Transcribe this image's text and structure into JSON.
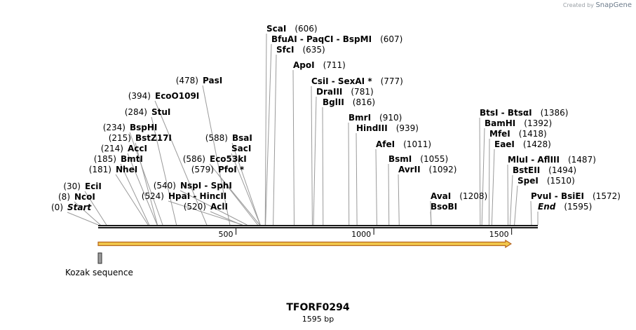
{
  "credit": {
    "prefix": "Created by",
    "brand": "SnapGene"
  },
  "sequence": {
    "name": "TFORF0294",
    "length_label": "1595 bp",
    "length": 1595
  },
  "ruler": {
    "ticks": [
      500,
      1000,
      1500
    ]
  },
  "feature": {
    "name": "Kozak sequence"
  },
  "colors": {
    "backbone": "#1a1a1a",
    "orf_fill": "#f2c84b",
    "orf_edge": "#b5651d",
    "feature": "#888888"
  },
  "sites": [
    {
      "name": "Start",
      "pos": "(0)",
      "site": 0,
      "italic": true,
      "posLeft": true
    },
    {
      "name": "NcoI",
      "pos": "(8)",
      "site": 8,
      "posLeft": true
    },
    {
      "name": "EciI",
      "pos": "(30)",
      "site": 30,
      "posLeft": true
    },
    {
      "name": "NheI",
      "pos": "(181)",
      "site": 181,
      "posLeft": true
    },
    {
      "name": "BmtI",
      "pos": "(185)",
      "site": 185,
      "posLeft": true
    },
    {
      "name": "AccI",
      "pos": "(214)",
      "site": 214,
      "posLeft": true
    },
    {
      "name": "BstZ17I",
      "pos": "(215)",
      "site": 215,
      "posLeft": true
    },
    {
      "name": "BspHI",
      "pos": "(234)",
      "site": 234,
      "posLeft": true
    },
    {
      "name": "StuI",
      "pos": "(284)",
      "site": 284,
      "posLeft": true
    },
    {
      "name": "EcoO109I",
      "pos": "(394)",
      "site": 394,
      "posLeft": true
    },
    {
      "name": "PasI",
      "pos": "(478)",
      "site": 478,
      "posLeft": true
    },
    {
      "name": "AclI",
      "pos": "(520)",
      "site": 520,
      "posLeft": true
    },
    {
      "name": "HpaI - HincII",
      "pos": "(524)",
      "site": 524,
      "posLeft": true
    },
    {
      "name": "NspI - SphI",
      "pos": "(540)",
      "site": 540,
      "posLeft": true
    },
    {
      "name": "PfoI *",
      "pos": "(579)",
      "site": 579,
      "posLeft": true
    },
    {
      "name": "Eco53kI",
      "pos": "(586)",
      "site": 586,
      "posLeft": true
    },
    {
      "name": "SacI",
      "pos": "",
      "site": 588
    },
    {
      "name": "BsaI",
      "pos": "(588)",
      "site": 588,
      "posLeft": true
    },
    {
      "name": "ScaI",
      "pos": "(606)",
      "site": 606
    },
    {
      "name": "BfuAI - PaqCI - BspMI",
      "pos": "(607)",
      "site": 607
    },
    {
      "name": "SfcI",
      "pos": "(635)",
      "site": 635
    },
    {
      "name": "ApoI",
      "pos": "(711)",
      "site": 711
    },
    {
      "name": "CsiI - SexAI *",
      "pos": "(777)",
      "site": 777
    },
    {
      "name": "DraIII",
      "pos": "(781)",
      "site": 781
    },
    {
      "name": "BglII",
      "pos": "(816)",
      "site": 816
    },
    {
      "name": "BmrI",
      "pos": "(910)",
      "site": 910
    },
    {
      "name": "HindIII",
      "pos": "(939)",
      "site": 939
    },
    {
      "name": "AfeI",
      "pos": "(1011)",
      "site": 1011
    },
    {
      "name": "BsmI",
      "pos": "(1055)",
      "site": 1055
    },
    {
      "name": "AvrII",
      "pos": "(1092)",
      "site": 1092
    },
    {
      "name": "AvaI",
      "pos": "(1208)",
      "site": 1208
    },
    {
      "name": "BsoBI",
      "pos": "",
      "site": 1208
    },
    {
      "name": "BtsI - BtsαI",
      "pos": "(1386)",
      "site": 1386
    },
    {
      "name": "BamHI",
      "pos": "(1392)",
      "site": 1392
    },
    {
      "name": "MfeI",
      "pos": "(1418)",
      "site": 1418
    },
    {
      "name": "EaeI",
      "pos": "(1428)",
      "site": 1428
    },
    {
      "name": "MluI - AflIII",
      "pos": "(1487)",
      "site": 1487
    },
    {
      "name": "BstEII",
      "pos": "(1494)",
      "site": 1494
    },
    {
      "name": "SpeI",
      "pos": "(1510)",
      "site": 1510
    },
    {
      "name": "PvuI - BsiEI",
      "pos": "(1572)",
      "site": 1572
    },
    {
      "name": "End",
      "pos": "(1595)",
      "site": 1595,
      "italic": true
    }
  ]
}
